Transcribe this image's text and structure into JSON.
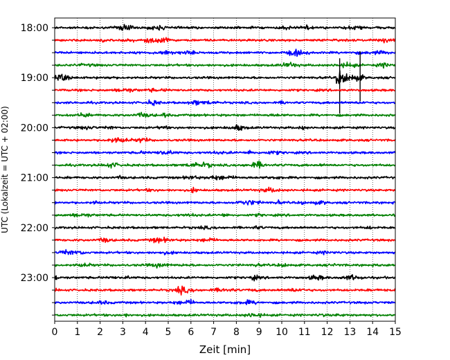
{
  "chart_data": {
    "type": "line",
    "title": "",
    "xlabel": "Zeit  [min]",
    "ylabel": "UTC (Lokalzeit = UTC + 02:00)",
    "xlim": [
      0,
      15
    ],
    "x_ticks": [
      "0",
      "1",
      "2",
      "3",
      "4",
      "5",
      "6",
      "7",
      "8",
      "9",
      "10",
      "11",
      "12",
      "13",
      "14",
      "15"
    ],
    "y_tick_labels": [
      "18:00",
      "19:00",
      "20:00",
      "21:00",
      "22:00",
      "23:00"
    ],
    "grid": "vertical-dotted",
    "trace_interval_minutes": 15,
    "series_colors": [
      "#000000",
      "#ff0000",
      "#0000ff",
      "#008000"
    ],
    "traces": [
      {
        "start": "18:00",
        "color": "#000000"
      },
      {
        "start": "18:15",
        "color": "#ff0000"
      },
      {
        "start": "18:30",
        "color": "#0000ff"
      },
      {
        "start": "18:45",
        "color": "#008000"
      },
      {
        "start": "19:00",
        "color": "#000000"
      },
      {
        "start": "19:15",
        "color": "#ff0000"
      },
      {
        "start": "19:30",
        "color": "#0000ff"
      },
      {
        "start": "19:45",
        "color": "#008000"
      },
      {
        "start": "20:00",
        "color": "#000000"
      },
      {
        "start": "20:15",
        "color": "#ff0000"
      },
      {
        "start": "20:30",
        "color": "#0000ff"
      },
      {
        "start": "20:45",
        "color": "#008000"
      },
      {
        "start": "21:00",
        "color": "#000000"
      },
      {
        "start": "21:15",
        "color": "#ff0000"
      },
      {
        "start": "21:30",
        "color": "#0000ff"
      },
      {
        "start": "21:45",
        "color": "#008000"
      },
      {
        "start": "22:00",
        "color": "#000000"
      },
      {
        "start": "22:15",
        "color": "#ff0000"
      },
      {
        "start": "22:30",
        "color": "#0000ff"
      },
      {
        "start": "22:45",
        "color": "#008000"
      },
      {
        "start": "23:00",
        "color": "#000000"
      },
      {
        "start": "23:15",
        "color": "#ff0000"
      },
      {
        "start": "23:30",
        "color": "#0000ff"
      },
      {
        "start": "23:45",
        "color": "#008000"
      }
    ]
  }
}
